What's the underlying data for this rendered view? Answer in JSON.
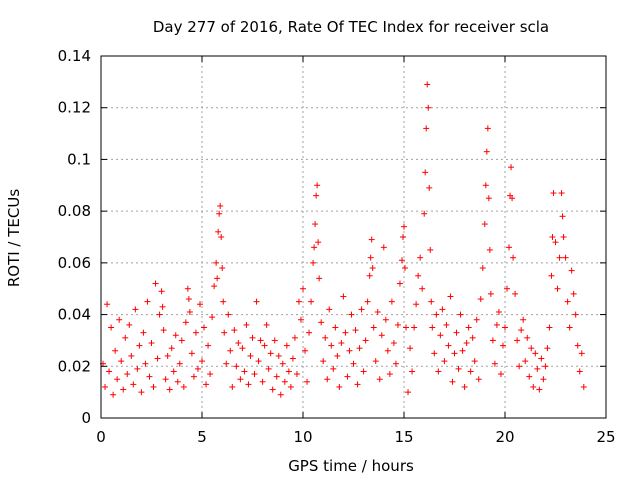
{
  "chart_data": {
    "type": "scatter",
    "title": "Day 277 of 2016, Rate Of TEC Index for receiver scla",
    "xlabel": "GPS time / hours",
    "ylabel": "ROTI / TECUs",
    "xlim": [
      0,
      25
    ],
    "ylim": [
      0,
      0.14
    ],
    "x_ticks": [
      0,
      5,
      10,
      15,
      20,
      25
    ],
    "x_tick_labels": [
      "0",
      "5",
      "10",
      "15",
      "20",
      "25"
    ],
    "y_ticks": [
      0,
      0.02,
      0.04,
      0.06,
      0.08,
      0.1,
      0.12,
      0.14
    ],
    "y_tick_labels": [
      "0",
      "0.02",
      "0.04",
      "0.06",
      "0.08",
      "0.1",
      "0.12",
      "0.14"
    ],
    "grid": true,
    "marker": "+",
    "color": "#ff0000",
    "series": [
      {
        "name": "ROTI",
        "points": [
          [
            0.1,
            0.021
          ],
          [
            0.2,
            0.012
          ],
          [
            0.3,
            0.044
          ],
          [
            0.4,
            0.018
          ],
          [
            0.5,
            0.035
          ],
          [
            0.6,
            0.009
          ],
          [
            0.7,
            0.026
          ],
          [
            0.8,
            0.015
          ],
          [
            0.9,
            0.038
          ],
          [
            1.0,
            0.022
          ],
          [
            1.1,
            0.011
          ],
          [
            1.2,
            0.031
          ],
          [
            1.3,
            0.017
          ],
          [
            1.4,
            0.036
          ],
          [
            1.5,
            0.024
          ],
          [
            1.6,
            0.013
          ],
          [
            1.7,
            0.042
          ],
          [
            1.8,
            0.019
          ],
          [
            1.9,
            0.028
          ],
          [
            2.0,
            0.01
          ],
          [
            2.1,
            0.033
          ],
          [
            2.2,
            0.021
          ],
          [
            2.3,
            0.045
          ],
          [
            2.4,
            0.016
          ],
          [
            2.5,
            0.029
          ],
          [
            2.6,
            0.012
          ],
          [
            2.7,
            0.052
          ],
          [
            2.8,
            0.023
          ],
          [
            2.9,
            0.04
          ],
          [
            3.0,
            0.049
          ],
          [
            3.05,
            0.043
          ],
          [
            3.1,
            0.034
          ],
          [
            3.2,
            0.015
          ],
          [
            3.3,
            0.024
          ],
          [
            3.4,
            0.011
          ],
          [
            3.5,
            0.027
          ],
          [
            3.6,
            0.018
          ],
          [
            3.7,
            0.032
          ],
          [
            3.8,
            0.014
          ],
          [
            3.9,
            0.021
          ],
          [
            4.0,
            0.03
          ],
          [
            4.1,
            0.012
          ],
          [
            4.2,
            0.037
          ],
          [
            4.3,
            0.05
          ],
          [
            4.35,
            0.046
          ],
          [
            4.4,
            0.041
          ],
          [
            4.5,
            0.025
          ],
          [
            4.6,
            0.016
          ],
          [
            4.7,
            0.033
          ],
          [
            4.8,
            0.019
          ],
          [
            4.9,
            0.044
          ],
          [
            5.0,
            0.022
          ],
          [
            5.1,
            0.035
          ],
          [
            5.2,
            0.013
          ],
          [
            5.3,
            0.028
          ],
          [
            5.4,
            0.017
          ],
          [
            5.5,
            0.039
          ],
          [
            5.6,
            0.051
          ],
          [
            5.7,
            0.06
          ],
          [
            5.75,
            0.054
          ],
          [
            5.8,
            0.072
          ],
          [
            5.85,
            0.079
          ],
          [
            5.9,
            0.082
          ],
          [
            5.95,
            0.07
          ],
          [
            6.0,
            0.058
          ],
          [
            6.05,
            0.045
          ],
          [
            6.1,
            0.033
          ],
          [
            6.2,
            0.021
          ],
          [
            6.3,
            0.04
          ],
          [
            6.4,
            0.026
          ],
          [
            6.5,
            0.012
          ],
          [
            6.6,
            0.034
          ],
          [
            6.7,
            0.02
          ],
          [
            6.8,
            0.029
          ],
          [
            6.9,
            0.015
          ],
          [
            7.0,
            0.027
          ],
          [
            7.1,
            0.018
          ],
          [
            7.2,
            0.036
          ],
          [
            7.3,
            0.013
          ],
          [
            7.4,
            0.024
          ],
          [
            7.5,
            0.031
          ],
          [
            7.6,
            0.017
          ],
          [
            7.7,
            0.045
          ],
          [
            7.8,
            0.022
          ],
          [
            7.9,
            0.03
          ],
          [
            8.0,
            0.014
          ],
          [
            8.1,
            0.028
          ],
          [
            8.2,
            0.036
          ],
          [
            8.3,
            0.019
          ],
          [
            8.4,
            0.025
          ],
          [
            8.5,
            0.011
          ],
          [
            8.6,
            0.03
          ],
          [
            8.7,
            0.016
          ],
          [
            8.8,
            0.024
          ],
          [
            8.9,
            0.009
          ],
          [
            9.0,
            0.021
          ],
          [
            9.1,
            0.014
          ],
          [
            9.2,
            0.028
          ],
          [
            9.3,
            0.018
          ],
          [
            9.4,
            0.012
          ],
          [
            9.5,
            0.023
          ],
          [
            9.6,
            0.031
          ],
          [
            9.7,
            0.017
          ],
          [
            9.8,
            0.045
          ],
          [
            9.9,
            0.038
          ],
          [
            10.0,
            0.05
          ],
          [
            10.1,
            0.026
          ],
          [
            10.2,
            0.014
          ],
          [
            10.3,
            0.033
          ],
          [
            10.4,
            0.045
          ],
          [
            10.5,
            0.06
          ],
          [
            10.55,
            0.066
          ],
          [
            10.6,
            0.075
          ],
          [
            10.65,
            0.086
          ],
          [
            10.7,
            0.09
          ],
          [
            10.75,
            0.068
          ],
          [
            10.8,
            0.054
          ],
          [
            10.9,
            0.037
          ],
          [
            11.0,
            0.022
          ],
          [
            11.1,
            0.031
          ],
          [
            11.2,
            0.015
          ],
          [
            11.3,
            0.042
          ],
          [
            11.4,
            0.028
          ],
          [
            11.5,
            0.019
          ],
          [
            11.6,
            0.035
          ],
          [
            11.7,
            0.024
          ],
          [
            11.8,
            0.012
          ],
          [
            11.9,
            0.029
          ],
          [
            12.0,
            0.047
          ],
          [
            12.1,
            0.033
          ],
          [
            12.2,
            0.016
          ],
          [
            12.3,
            0.026
          ],
          [
            12.4,
            0.04
          ],
          [
            12.5,
            0.021
          ],
          [
            12.6,
            0.034
          ],
          [
            12.7,
            0.013
          ],
          [
            12.8,
            0.027
          ],
          [
            12.9,
            0.042
          ],
          [
            13.0,
            0.018
          ],
          [
            13.1,
            0.03
          ],
          [
            13.2,
            0.045
          ],
          [
            13.3,
            0.055
          ],
          [
            13.35,
            0.062
          ],
          [
            13.4,
            0.069
          ],
          [
            13.45,
            0.058
          ],
          [
            13.5,
            0.035
          ],
          [
            13.6,
            0.022
          ],
          [
            13.7,
            0.041
          ],
          [
            13.8,
            0.015
          ],
          [
            13.9,
            0.032
          ],
          [
            14.0,
            0.066
          ],
          [
            14.1,
            0.038
          ],
          [
            14.2,
            0.026
          ],
          [
            14.3,
            0.017
          ],
          [
            14.4,
            0.045
          ],
          [
            14.5,
            0.029
          ],
          [
            14.6,
            0.021
          ],
          [
            14.7,
            0.036
          ],
          [
            14.8,
            0.052
          ],
          [
            14.9,
            0.061
          ],
          [
            14.95,
            0.07
          ],
          [
            15.0,
            0.074
          ],
          [
            15.05,
            0.058
          ],
          [
            15.1,
            0.035
          ],
          [
            15.2,
            0.01
          ],
          [
            15.3,
            0.027
          ],
          [
            15.4,
            0.018
          ],
          [
            15.5,
            0.035
          ],
          [
            15.6,
            0.044
          ],
          [
            15.7,
            0.055
          ],
          [
            15.8,
            0.062
          ],
          [
            15.9,
            0.05
          ],
          [
            16.0,
            0.079
          ],
          [
            16.05,
            0.095
          ],
          [
            16.1,
            0.112
          ],
          [
            16.15,
            0.129
          ],
          [
            16.2,
            0.12
          ],
          [
            16.25,
            0.089
          ],
          [
            16.3,
            0.065
          ],
          [
            16.35,
            0.045
          ],
          [
            16.4,
            0.035
          ],
          [
            16.5,
            0.025
          ],
          [
            16.6,
            0.04
          ],
          [
            16.7,
            0.018
          ],
          [
            16.8,
            0.032
          ],
          [
            16.9,
            0.042
          ],
          [
            17.0,
            0.022
          ],
          [
            17.1,
            0.036
          ],
          [
            17.2,
            0.028
          ],
          [
            17.3,
            0.047
          ],
          [
            17.4,
            0.014
          ],
          [
            17.5,
            0.025
          ],
          [
            17.6,
            0.033
          ],
          [
            17.7,
            0.019
          ],
          [
            17.8,
            0.04
          ],
          [
            17.9,
            0.026
          ],
          [
            18.0,
            0.012
          ],
          [
            18.1,
            0.029
          ],
          [
            18.2,
            0.035
          ],
          [
            18.3,
            0.018
          ],
          [
            18.4,
            0.031
          ],
          [
            18.5,
            0.022
          ],
          [
            18.6,
            0.038
          ],
          [
            18.7,
            0.015
          ],
          [
            18.8,
            0.046
          ],
          [
            18.9,
            0.058
          ],
          [
            19.0,
            0.075
          ],
          [
            19.05,
            0.09
          ],
          [
            19.1,
            0.103
          ],
          [
            19.15,
            0.112
          ],
          [
            19.2,
            0.085
          ],
          [
            19.25,
            0.065
          ],
          [
            19.3,
            0.048
          ],
          [
            19.4,
            0.03
          ],
          [
            19.5,
            0.021
          ],
          [
            19.6,
            0.036
          ],
          [
            19.7,
            0.041
          ],
          [
            19.8,
            0.017
          ],
          [
            19.9,
            0.028
          ],
          [
            20.0,
            0.035
          ],
          [
            20.1,
            0.05
          ],
          [
            20.2,
            0.066
          ],
          [
            20.25,
            0.086
          ],
          [
            20.3,
            0.097
          ],
          [
            20.35,
            0.085
          ],
          [
            20.4,
            0.062
          ],
          [
            20.5,
            0.048
          ],
          [
            20.6,
            0.03
          ],
          [
            20.7,
            0.02
          ],
          [
            20.8,
            0.034
          ],
          [
            20.9,
            0.038
          ],
          [
            21.0,
            0.022
          ],
          [
            21.1,
            0.031
          ],
          [
            21.2,
            0.016
          ],
          [
            21.3,
            0.027
          ],
          [
            21.4,
            0.012
          ],
          [
            21.5,
            0.025
          ],
          [
            21.6,
            0.019
          ],
          [
            21.7,
            0.011
          ],
          [
            21.8,
            0.023
          ],
          [
            21.9,
            0.015
          ],
          [
            22.0,
            0.02
          ],
          [
            22.1,
            0.027
          ],
          [
            22.2,
            0.035
          ],
          [
            22.3,
            0.055
          ],
          [
            22.35,
            0.07
          ],
          [
            22.4,
            0.087
          ],
          [
            22.5,
            0.068
          ],
          [
            22.6,
            0.05
          ],
          [
            22.7,
            0.062
          ],
          [
            22.8,
            0.087
          ],
          [
            22.85,
            0.078
          ],
          [
            22.9,
            0.07
          ],
          [
            23.0,
            0.062
          ],
          [
            23.1,
            0.045
          ],
          [
            23.2,
            0.035
          ],
          [
            23.3,
            0.057
          ],
          [
            23.4,
            0.048
          ],
          [
            23.5,
            0.04
          ],
          [
            23.6,
            0.028
          ],
          [
            23.7,
            0.018
          ],
          [
            23.8,
            0.025
          ],
          [
            23.9,
            0.012
          ]
        ]
      }
    ]
  }
}
